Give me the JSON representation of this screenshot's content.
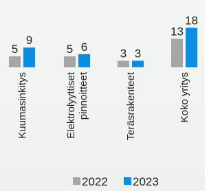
{
  "chart_data": {
    "type": "bar",
    "categories": [
      "Kuumasinkitys",
      "Elektrolyyttiset\npinnoitteet",
      "Teräsrakenteet",
      "Koko yritys"
    ],
    "series": [
      {
        "name": "2022",
        "color": "#a6a6a6",
        "values": [
          5,
          5,
          3,
          13
        ]
      },
      {
        "name": "2023",
        "color": "#0a8fdf",
        "values": [
          9,
          6,
          3,
          18
        ]
      }
    ]
  }
}
